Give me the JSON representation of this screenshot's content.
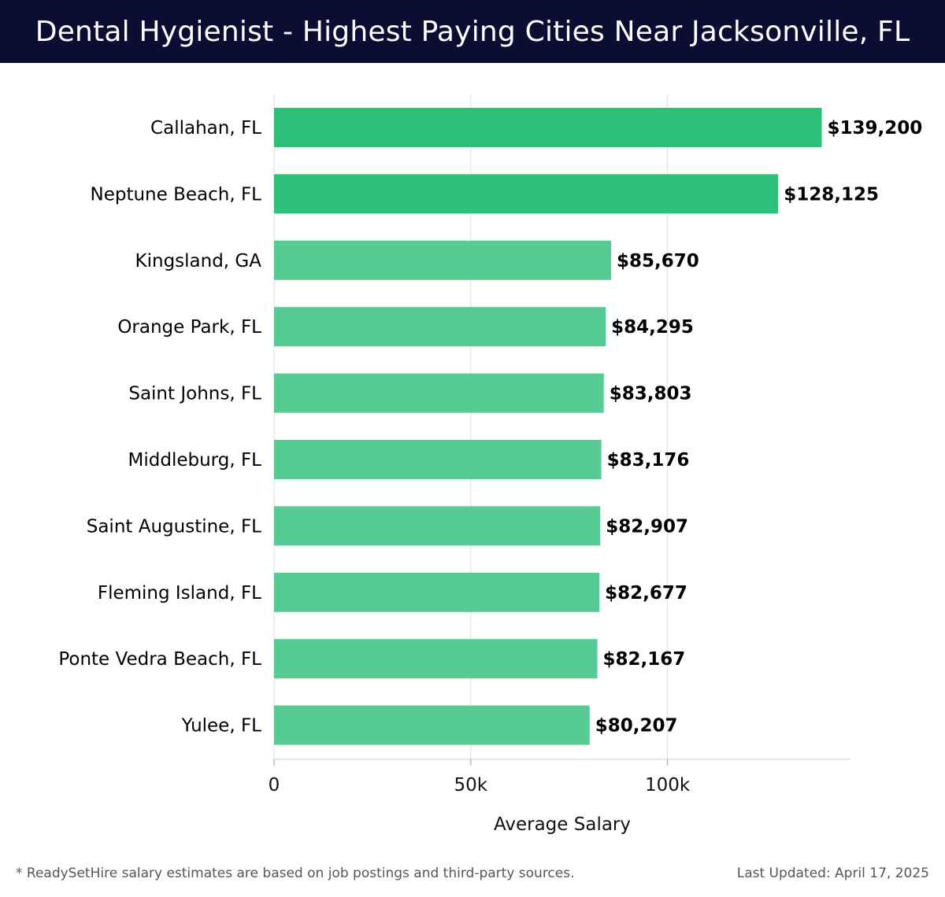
{
  "header": {
    "title": "Dental Hygienist - Highest Paying Cities Near Jacksonville, FL"
  },
  "chart_data": {
    "type": "bar",
    "orientation": "horizontal",
    "title": "Dental Hygienist - Highest Paying Cities Near Jacksonville, FL",
    "xlabel": "Average Salary",
    "ylabel": "",
    "xlim": [
      0,
      146500
    ],
    "x_ticks": [
      0,
      50000,
      100000
    ],
    "x_tick_labels": [
      "0",
      "50k",
      "100k"
    ],
    "grid": true,
    "categories": [
      "Callahan, FL",
      "Neptune Beach, FL",
      "Kingsland, GA",
      "Orange Park, FL",
      "Saint Johns, FL",
      "Middleburg, FL",
      "Saint Augustine, FL",
      "Fleming Island, FL",
      "Ponte Vedra Beach, FL",
      "Yulee, FL"
    ],
    "values": [
      139200,
      128125,
      85670,
      84295,
      83803,
      83176,
      82907,
      82677,
      82167,
      80207
    ],
    "value_labels": [
      "$139,200",
      "$128,125",
      "$85,670",
      "$84,295",
      "$83,803",
      "$83,176",
      "$82,907",
      "$82,677",
      "$82,167",
      "$80,207"
    ],
    "colors": {
      "top_bar": "#2ebf78",
      "bar": "#57cb94",
      "grid": "#dddddd",
      "label": "#000000"
    }
  },
  "footer": {
    "note": "* ReadySetHire salary estimates are based on job postings and third-party sources.",
    "updated": "Last Updated: April 17, 2025"
  }
}
